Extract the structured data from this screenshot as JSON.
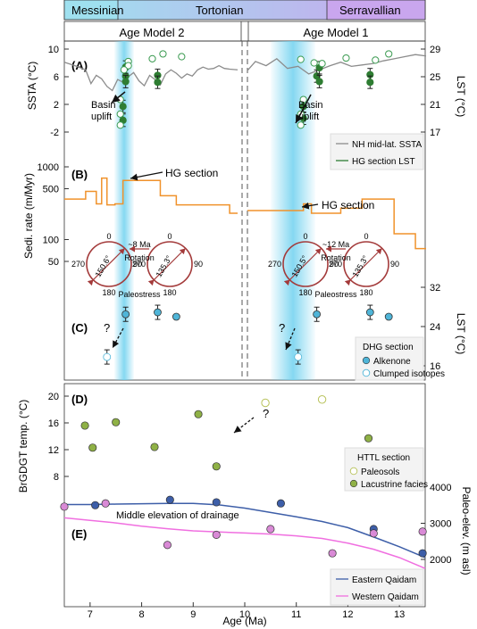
{
  "colors": {
    "nh_ssta": "#8c8c8c",
    "hg_lst": "#2e7d32",
    "hg_lst_fill": "#2e7d32",
    "hg_lst_open": "#3a9a50",
    "sedirate": "#f0922b",
    "alkenone": "#4fb5d8",
    "clumped": "#bfe6f3",
    "paleosol_edge": "#b8c25a",
    "lacustrine": "#8fb146",
    "eastern": "#3d5ea8",
    "western": "#f06fe0",
    "east_pts": "#3d5ea8",
    "west_pts": "#d98ad6",
    "rose": "#a33a3a",
    "highlight": "#6fd1ef"
  },
  "header": {
    "stages": [
      "Messinian",
      "Tortonian",
      "Serravallian"
    ]
  },
  "panel_labels": [
    "(A)",
    "(B)",
    "(C)",
    "(D)",
    "(E)"
  ],
  "age_models": [
    "Age Model 2",
    "Age Model 1"
  ],
  "annotations": {
    "basin_uplift_1": "Basin",
    "basin_uplift_2": "uplift",
    "hg_section": "HG section",
    "question": "?",
    "middle_elevation": "Middle elevation of drainage"
  },
  "roses": [
    {
      "ma": "~8 Ma",
      "angle": "150.6°",
      "angle2": "135.3°"
    },
    {
      "ma": "~12 Ma",
      "angle": "150.5°",
      "angle2": "135.3°"
    }
  ],
  "rose_labels": {
    "rotation": "Rotation",
    "paleostress": "Paleostress",
    "deg0": "0",
    "deg90": "90",
    "deg180": "180",
    "deg270": "270"
  },
  "legends": {
    "a": [
      "NH mid-lat. SSTA",
      "HG section LST"
    ],
    "c_title": "DHG section",
    "c": [
      "Alkenone",
      "Clumped isotopes"
    ],
    "d_title": "HTTL section",
    "d": [
      "Paleosols",
      "Lacustrine facies"
    ],
    "e": [
      "Eastern Qaidam",
      "Western Qaidam"
    ]
  },
  "chart_data": [
    {
      "panel": "A",
      "type": "line",
      "xlabel": "",
      "ylabel": "SSTA (°C)",
      "ylabel_right": "LST (°C)",
      "yticks_left": [
        -2,
        2,
        6,
        10
      ],
      "yticks_right": [
        17,
        21,
        25,
        29
      ],
      "series": [
        {
          "name": "NH mid-lat. SSTA",
          "model": 2,
          "x": [
            6.5,
            6.7,
            6.9,
            7.0,
            7.1,
            7.2,
            7.3,
            7.4,
            7.5,
            7.6,
            7.7,
            7.8,
            7.9,
            8.0,
            8.1,
            8.2,
            8.3,
            8.4,
            8.5,
            8.6,
            8.7,
            8.8,
            8.9,
            9.0,
            9.1,
            9.2,
            9.3,
            9.4,
            9.5,
            9.6,
            9.75
          ],
          "y": [
            8.1,
            7.6,
            7.0,
            5.0,
            6.2,
            5.7,
            4.6,
            4.0,
            5.6,
            5.2,
            6.0,
            6.6,
            5.4,
            4.7,
            6.2,
            5.6,
            4.8,
            6.4,
            7.0,
            6.5,
            5.8,
            6.4,
            6.1,
            7.0,
            7.4,
            7.1,
            7.2,
            7.6,
            7.2,
            7.1,
            7.0
          ]
        },
        {
          "name": "NH mid-lat. SSTA",
          "model": 1,
          "x": [
            10.15,
            10.3,
            10.5,
            10.7,
            10.9,
            11.1,
            11.3,
            11.5,
            11.7,
            11.9,
            12.1,
            12.3,
            12.5,
            12.7,
            12.9,
            13.1,
            13.3,
            13.5
          ],
          "y": [
            6.9,
            8.2,
            7.6,
            8.6,
            7.2,
            7.5,
            6.4,
            7.0,
            7.6,
            8.1,
            7.5,
            7.7,
            7.9,
            8.3,
            8.6,
            8.9,
            9.2,
            9.0
          ]
        }
      ],
      "hg_lst_closed": {
        "model2": [
          [
            7.65,
            25.1
          ],
          [
            7.65,
            26.4
          ],
          [
            7.65,
            24.3
          ],
          [
            7.6,
            20.7
          ],
          [
            7.6,
            18.7
          ],
          [
            8.25,
            25.2
          ],
          [
            8.25,
            24.2
          ]
        ],
        "model1": [
          [
            11.45,
            25.1
          ],
          [
            11.5,
            26.3
          ],
          [
            11.5,
            24.3
          ],
          [
            11.2,
            20.7
          ],
          [
            11.2,
            19.0
          ],
          [
            12.45,
            25.3
          ],
          [
            12.45,
            24.2
          ]
        ]
      },
      "hg_lst_open": {
        "model2": [
          [
            7.7,
            27.2
          ],
          [
            7.7,
            26.6
          ],
          [
            7.62,
            26.0
          ],
          [
            8.15,
            27.6
          ],
          [
            8.35,
            28.3
          ],
          [
            8.7,
            27.9
          ],
          [
            7.55,
            19.6
          ],
          [
            7.55,
            18.0
          ],
          [
            7.55,
            21.7
          ]
        ],
        "model1": [
          [
            11.15,
            27.5
          ],
          [
            11.4,
            27.0
          ],
          [
            11.55,
            26.9
          ],
          [
            12.0,
            27.7
          ],
          [
            12.55,
            27.4
          ],
          [
            12.8,
            28.3
          ],
          [
            11.15,
            19.6
          ],
          [
            11.15,
            18.0
          ],
          [
            11.2,
            21.7
          ]
        ]
      }
    },
    {
      "panel": "B",
      "type": "line",
      "ylabel": "Sedi. rate (m/Myr)",
      "yscale": "log",
      "yticks": [
        50,
        100,
        500,
        1000
      ],
      "series": [
        {
          "name": "HG section",
          "model": 2,
          "x": [
            6.5,
            6.9,
            6.9,
            7.1,
            7.1,
            7.2,
            7.2,
            7.3,
            7.3,
            7.45,
            7.45,
            7.6,
            7.6,
            8.3,
            8.3,
            8.6,
            8.6,
            9.6,
            9.6,
            9.75
          ],
          "y": [
            360,
            360,
            460,
            460,
            310,
            310,
            700,
            700,
            300,
            300,
            310,
            310,
            650,
            650,
            400,
            400,
            300,
            300,
            230,
            230
          ]
        },
        {
          "name": "HG section",
          "model": 1,
          "x": [
            10.15,
            11.2,
            11.2,
            11.35,
            11.35,
            11.9,
            11.9,
            12.3,
            12.3,
            12.7,
            12.7,
            12.9,
            12.9,
            13.3,
            13.3,
            13.5
          ],
          "y": [
            250,
            250,
            310,
            310,
            230,
            230,
            270,
            270,
            360,
            360,
            360,
            360,
            120,
            120,
            75,
            75
          ]
        }
      ]
    },
    {
      "panel": "C",
      "type": "scatter",
      "ylabel_right": "LST (°C)",
      "yticks_right": [
        16,
        24,
        32
      ],
      "series": [
        {
          "name": "Alkenone",
          "model2": [
            [
              7.65,
              26.5
            ],
            [
              8.25,
              26.9
            ],
            [
              8.6,
              26.0
            ]
          ],
          "model1": [
            [
              11.45,
              26.5
            ],
            [
              12.45,
              26.9
            ],
            [
              12.8,
              26.0
            ]
          ]
        },
        {
          "name": "Clumped isotopes",
          "model2": [
            [
              7.3,
              17.8
            ]
          ],
          "model1": [
            [
              11.1,
              17.8
            ]
          ]
        }
      ]
    },
    {
      "panel": "D",
      "type": "scatter",
      "ylabel": "BrGDGT temp. (°C)",
      "yticks": [
        8,
        12,
        16,
        20
      ],
      "series": [
        {
          "name": "Paleosols",
          "x": [
            10.4,
            11.5
          ],
          "y": [
            19.0,
            19.5
          ]
        },
        {
          "name": "Lacustrine facies",
          "x": [
            6.9,
            7.05,
            7.5,
            8.25,
            9.1,
            9.45,
            12.4
          ],
          "y": [
            15.6,
            12.3,
            16.1,
            12.4,
            17.3,
            9.5,
            13.7
          ]
        }
      ]
    },
    {
      "panel": "E",
      "type": "line",
      "xlabel": "Age (Ma)",
      "ylabel_right": "Paleo-elev. (m asl)",
      "yticks_right": [
        2000,
        3000,
        4000
      ],
      "xticks": [
        7,
        8,
        9,
        10,
        11,
        12,
        13
      ],
      "xlim": [
        6.5,
        13.5
      ],
      "series": [
        {
          "name": "Eastern Qaidam",
          "x": [
            6.5,
            7.0,
            7.5,
            8.0,
            8.5,
            9.0,
            9.5,
            10.0,
            10.5,
            11.0,
            11.5,
            12.0,
            12.5,
            13.0,
            13.5
          ],
          "y": [
            3520,
            3520,
            3530,
            3540,
            3550,
            3550,
            3510,
            3420,
            3300,
            3180,
            3050,
            2880,
            2620,
            2350,
            2050
          ],
          "points_x": [
            7.1,
            8.55,
            9.45,
            10.7,
            12.5,
            13.45
          ],
          "points_y": [
            3500,
            3650,
            3580,
            3550,
            2840,
            2170
          ]
        },
        {
          "name": "Western Qaidam",
          "x": [
            6.5,
            7.0,
            7.5,
            8.0,
            8.5,
            9.0,
            9.5,
            10.0,
            10.5,
            11.0,
            11.5,
            12.0,
            12.5,
            13.0,
            13.5
          ],
          "y": [
            3150,
            3080,
            3010,
            2920,
            2850,
            2790,
            2760,
            2730,
            2700,
            2650,
            2580,
            2450,
            2280,
            2050,
            1750
          ],
          "points_x": [
            6.5,
            7.3,
            8.5,
            9.45,
            10.5,
            11.7,
            12.5,
            13.45
          ],
          "points_y": [
            3460,
            3550,
            2400,
            2680,
            2840,
            2170,
            2720,
            2770
          ]
        }
      ]
    }
  ]
}
